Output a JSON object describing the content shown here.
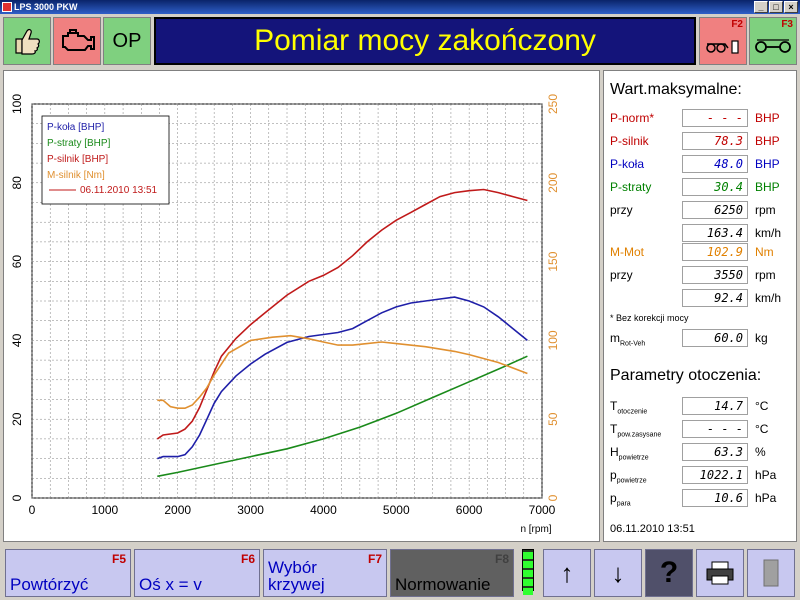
{
  "window": {
    "title": "LPS 3000 PKW"
  },
  "toolbar": {
    "op_label": "OP",
    "f2": "F2",
    "f3": "F3"
  },
  "banner": {
    "text": "Pomiar mocy zakończony"
  },
  "chart_data": {
    "type": "line",
    "xlabel": "n [rpm]",
    "xlim": [
      0,
      7000
    ],
    "xticks": [
      0,
      1000,
      2000,
      3000,
      4000,
      5000,
      6000,
      7000
    ],
    "ylim_left": [
      0,
      100
    ],
    "yticks_left": [
      0,
      20,
      40,
      60,
      80,
      100
    ],
    "ylim_right": [
      0,
      250
    ],
    "yticks_right": [
      0,
      50,
      100,
      150,
      200,
      250
    ],
    "grid": true,
    "legend_placement": "top-left",
    "legend": [
      "P-koła [BHP]",
      "P-straty [BHP]",
      "P-silnik [BHP]",
      "M-silnik [Nm]"
    ],
    "legend_date": "06.11.2010 13:51",
    "colors": {
      "kola": "#1f1fa8",
      "straty": "#1a8a1a",
      "silnik": "#c01a1a",
      "moment": "#e09030"
    },
    "series": [
      {
        "name": "P-koła [BHP]",
        "axis": "left",
        "color": "#1f1fa8",
        "x": [
          1720,
          1800,
          2000,
          2100,
          2200,
          2300,
          2400,
          2500,
          2600,
          2800,
          3000,
          3200,
          3500,
          3800,
          4000,
          4200,
          4400,
          4600,
          4800,
          5000,
          5200,
          5400,
          5600,
          5800,
          6000,
          6200,
          6400,
          6600,
          6800
        ],
        "y": [
          10,
          10.5,
          10.5,
          11,
          13,
          16,
          20,
          24,
          27,
          31,
          34,
          36.5,
          39.5,
          41,
          41.5,
          42,
          43,
          45,
          47,
          48.5,
          49.5,
          50,
          50.5,
          51,
          50,
          48.5,
          46,
          43,
          40
        ]
      },
      {
        "name": "P-straty [BHP]",
        "axis": "left",
        "color": "#1a8a1a",
        "x": [
          1720,
          2000,
          2500,
          3000,
          3500,
          4000,
          4500,
          5000,
          5500,
          6000,
          6500,
          6800
        ],
        "y": [
          5.5,
          6.5,
          8.5,
          10.5,
          12.5,
          15,
          18,
          21.5,
          25.5,
          29.5,
          33.5,
          36
        ]
      },
      {
        "name": "P-silnik [BHP]",
        "axis": "left",
        "color": "#c01a1a",
        "x": [
          1720,
          1800,
          2000,
          2100,
          2200,
          2300,
          2400,
          2500,
          2600,
          2800,
          3000,
          3200,
          3500,
          3800,
          4000,
          4200,
          4400,
          4600,
          4800,
          5000,
          5200,
          5400,
          5600,
          5800,
          6000,
          6200,
          6400,
          6600,
          6800
        ],
        "y": [
          15,
          16,
          16.5,
          17.5,
          19.5,
          23,
          27.5,
          32,
          36,
          40.5,
          44,
          47,
          51.5,
          55,
          56.5,
          58.5,
          61.5,
          65,
          68,
          70.5,
          72.5,
          74.5,
          76.5,
          77.5,
          78,
          78.3,
          77.5,
          76.5,
          75.5
        ]
      },
      {
        "name": "M-silnik [Nm]",
        "axis": "right",
        "color": "#e09030",
        "x": [
          1720,
          1800,
          1900,
          2000,
          2100,
          2200,
          2300,
          2400,
          2500,
          2700,
          3000,
          3300,
          3550,
          3800,
          4000,
          4200,
          4400,
          4600,
          4800,
          5000,
          5400,
          5800,
          6000,
          6400,
          6800
        ],
        "y": [
          62,
          62,
          58,
          57,
          57,
          59,
          64,
          70,
          78,
          92,
          100,
          102,
          103,
          101,
          99,
          97,
          97,
          98,
          99,
          98,
          96,
          93,
          91,
          86,
          79
        ]
      }
    ]
  },
  "side": {
    "max_title": "Wart.maksymalne:",
    "rows": [
      {
        "label": "P-norm*",
        "value": "- - - -.-",
        "unit": "BHP",
        "color": "#c00000",
        "valcolor": "#c00000"
      },
      {
        "label": "P-silnik",
        "value": "78.3",
        "unit": "BHP",
        "color": "#c00000",
        "valcolor": "#c00000"
      },
      {
        "label": "P-koła",
        "value": "48.0",
        "unit": "BHP",
        "color": "#0000c0",
        "valcolor": "#0000c0"
      },
      {
        "label": "P-straty",
        "value": "30.4",
        "unit": "BHP",
        "color": "#008000",
        "valcolor": "#008000"
      },
      {
        "label": "przy",
        "value": "6250",
        "unit": "rpm",
        "color": "#000000",
        "valcolor": "#000000"
      },
      {
        "label": "",
        "value": "163.4",
        "unit": "km/h",
        "color": "#000000",
        "valcolor": "#000000"
      },
      {
        "label": "M-Mot",
        "value": "102.9",
        "unit": "Nm",
        "color": "#e08000",
        "valcolor": "#e08000"
      },
      {
        "label": "przy",
        "value": "3550",
        "unit": "rpm",
        "color": "#000000",
        "valcolor": "#000000"
      },
      {
        "label": "",
        "value": "92.4",
        "unit": "km/h",
        "color": "#000000",
        "valcolor": "#000000"
      }
    ],
    "note": "* Bez korekcji mocy",
    "mass": {
      "label": "m",
      "sub": "Rot-Veh",
      "value": "60.0",
      "unit": "kg"
    },
    "env_title": "Parametry otoczenia:",
    "env": [
      {
        "label": "T",
        "sub": "otoczenie",
        "value": "14.7",
        "unit": "°C"
      },
      {
        "label": "T",
        "sub": "pow.zasysane",
        "value": "- - - -.-",
        "unit": "°C"
      },
      {
        "label": "H",
        "sub": "powietrze",
        "value": "63.3",
        "unit": "%"
      },
      {
        "label": "p",
        "sub": "powietrze",
        "value": "1022.1",
        "unit": "hPa"
      },
      {
        "label": "p",
        "sub": "para",
        "value": "10.6",
        "unit": "hPa"
      }
    ],
    "date": "06.11.2010  13:51"
  },
  "bottom": {
    "buttons": [
      {
        "label": "Powtórzyć",
        "key": "F5"
      },
      {
        "label": "Oś x = v",
        "key": "F6"
      },
      {
        "label": "Wybór krzywej",
        "key": "F7"
      },
      {
        "label": "Normowanie",
        "key": "F8"
      }
    ]
  }
}
